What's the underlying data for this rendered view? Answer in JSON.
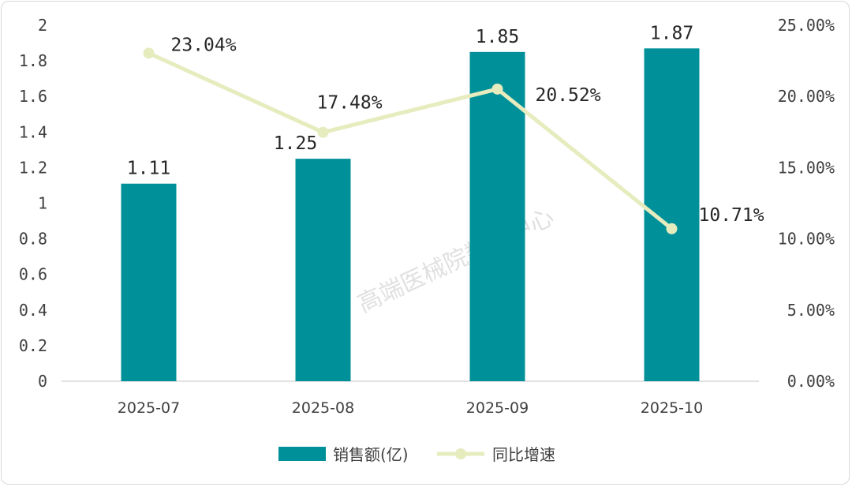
{
  "chart_data": {
    "type": "bar+line",
    "categories": [
      "2025-07",
      "2025-08",
      "2025-09",
      "2025-10"
    ],
    "series": [
      {
        "name": "销售额(亿)",
        "type": "bar",
        "axis": "left",
        "values": [
          1.11,
          1.25,
          1.85,
          1.87
        ],
        "labels": [
          "1.11",
          "1.25",
          "1.85",
          "1.87"
        ],
        "color": "#00909a"
      },
      {
        "name": "同比增速",
        "type": "line",
        "axis": "right",
        "values": [
          23.04,
          17.48,
          20.52,
          10.71
        ],
        "labels": [
          "23.04%",
          "17.48%",
          "20.52%",
          "10.71%"
        ],
        "color": "#e6ecbe"
      }
    ],
    "y_left": {
      "min": 0,
      "max": 2,
      "ticks": [
        "0",
        "0.2",
        "0.4",
        "0.6",
        "0.8",
        "1",
        "1.2",
        "1.4",
        "1.6",
        "1.8",
        "2"
      ]
    },
    "y_right": {
      "min": 0,
      "max": 25,
      "ticks": [
        "0.00%",
        "5.00%",
        "10.00%",
        "15.00%",
        "20.00%",
        "25.00%"
      ]
    },
    "legend_position": "bottom",
    "watermark": "高端医械院数据中心"
  }
}
